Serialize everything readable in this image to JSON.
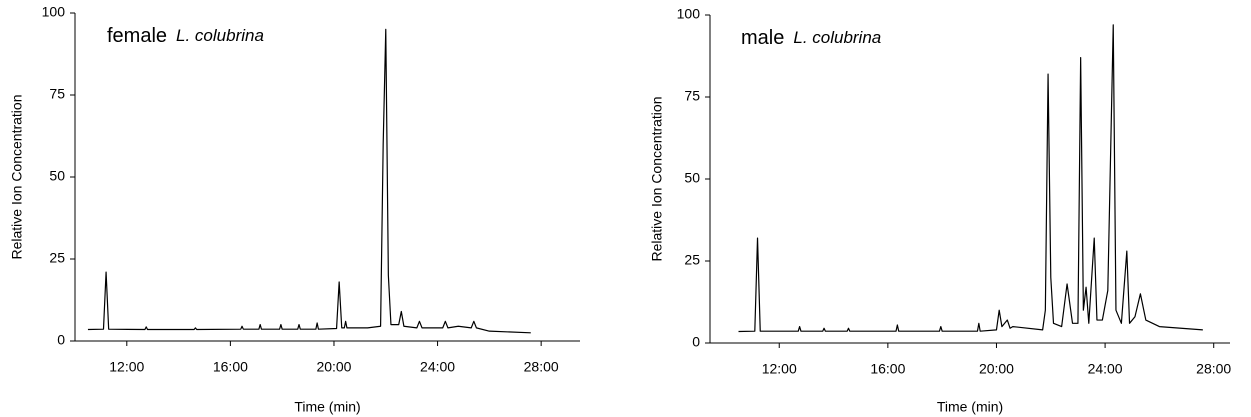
{
  "chart_data": [
    {
      "type": "line",
      "annotation": [
        "female",
        "L. colubrina"
      ],
      "xlabel": "Time (min)",
      "ylabel": "Relative Ion Concentration",
      "x": [
        10.5,
        11.1,
        11.2,
        11.3,
        12.7,
        12.75,
        12.8,
        14.6,
        14.65,
        14.7,
        16.4,
        16.45,
        16.5,
        17.1,
        17.15,
        17.2,
        17.9,
        17.95,
        18.0,
        18.6,
        18.65,
        18.7,
        19.3,
        19.35,
        19.4,
        20.1,
        20.2,
        20.3,
        20.4,
        20.45,
        20.5,
        21.3,
        21.8,
        21.9,
        22.0,
        22.1,
        22.2,
        22.5,
        22.6,
        22.7,
        23.2,
        23.3,
        23.4,
        24.2,
        24.3,
        24.4,
        24.8,
        25.3,
        25.4,
        25.5,
        26.0,
        27.6
      ],
      "series": [
        {
          "color": "#000000",
          "values": [
            3.5,
            3.6,
            21,
            3.6,
            3.5,
            4.3,
            3.5,
            3.5,
            4.0,
            3.5,
            3.6,
            4.5,
            3.6,
            3.6,
            5,
            3.6,
            3.6,
            5,
            3.6,
            3.6,
            5,
            3.6,
            3.6,
            5.5,
            3.6,
            3.8,
            18,
            4,
            4,
            6,
            4,
            4,
            4.5,
            60,
            95,
            20,
            5,
            5,
            9,
            4.5,
            4,
            6,
            4,
            4,
            6,
            4,
            4.5,
            4,
            6,
            4,
            3,
            2.5
          ]
        }
      ],
      "xlim": [
        10,
        29.5
      ],
      "xticks": [
        {
          "value": 12,
          "label": "12:00"
        },
        {
          "value": 16,
          "label": "16:00"
        },
        {
          "value": 20,
          "label": "20:00"
        },
        {
          "value": 24,
          "label": "24:00"
        },
        {
          "value": 28,
          "label": "28:00"
        }
      ],
      "ylim": [
        0,
        100
      ],
      "yticks": [
        0,
        25,
        50,
        75,
        100
      ]
    },
    {
      "type": "line",
      "annotation": [
        "male",
        "L. colubrina"
      ],
      "xlabel": "Time (min)",
      "ylabel": "Relative Ion Concentration",
      "x": [
        10.5,
        11.1,
        11.2,
        11.3,
        12.7,
        12.75,
        12.8,
        13.6,
        13.65,
        13.7,
        14.5,
        14.55,
        14.6,
        16.3,
        16.35,
        16.4,
        17.9,
        17.95,
        18.0,
        19.3,
        19.35,
        19.4,
        20.0,
        20.1,
        20.2,
        20.4,
        20.5,
        20.6,
        21.7,
        21.8,
        21.9,
        22.0,
        22.1,
        22.4,
        22.6,
        22.8,
        23.0,
        23.1,
        23.2,
        23.3,
        23.4,
        23.6,
        23.7,
        23.9,
        24.1,
        24.3,
        24.4,
        24.6,
        24.8,
        24.9,
        25.1,
        25.3,
        25.5,
        26.0,
        27.6
      ],
      "series": [
        {
          "color": "#000000",
          "values": [
            3.5,
            3.6,
            32,
            3.6,
            3.6,
            5,
            3.6,
            3.6,
            4.5,
            3.6,
            3.6,
            4.5,
            3.6,
            3.6,
            5.5,
            3.6,
            3.6,
            5,
            3.6,
            3.6,
            6,
            3.6,
            4,
            10,
            5,
            7,
            4.5,
            5,
            4,
            10,
            82,
            20,
            6,
            5,
            18,
            6,
            6,
            87,
            10,
            17,
            6,
            32,
            7,
            7,
            16,
            97,
            10,
            6,
            28,
            6,
            8,
            15,
            7,
            5,
            4
          ]
        }
      ],
      "xlim": [
        9.45,
        28.6
      ],
      "xticks": [
        {
          "value": 12,
          "label": "12:00"
        },
        {
          "value": 16,
          "label": "16:00"
        },
        {
          "value": 20,
          "label": "20:00"
        },
        {
          "value": 24,
          "label": "24:00"
        },
        {
          "value": 28,
          "label": "28:00"
        }
      ],
      "ylim": [
        0,
        100
      ],
      "yticks": [
        0,
        25,
        50,
        75,
        100
      ]
    }
  ]
}
